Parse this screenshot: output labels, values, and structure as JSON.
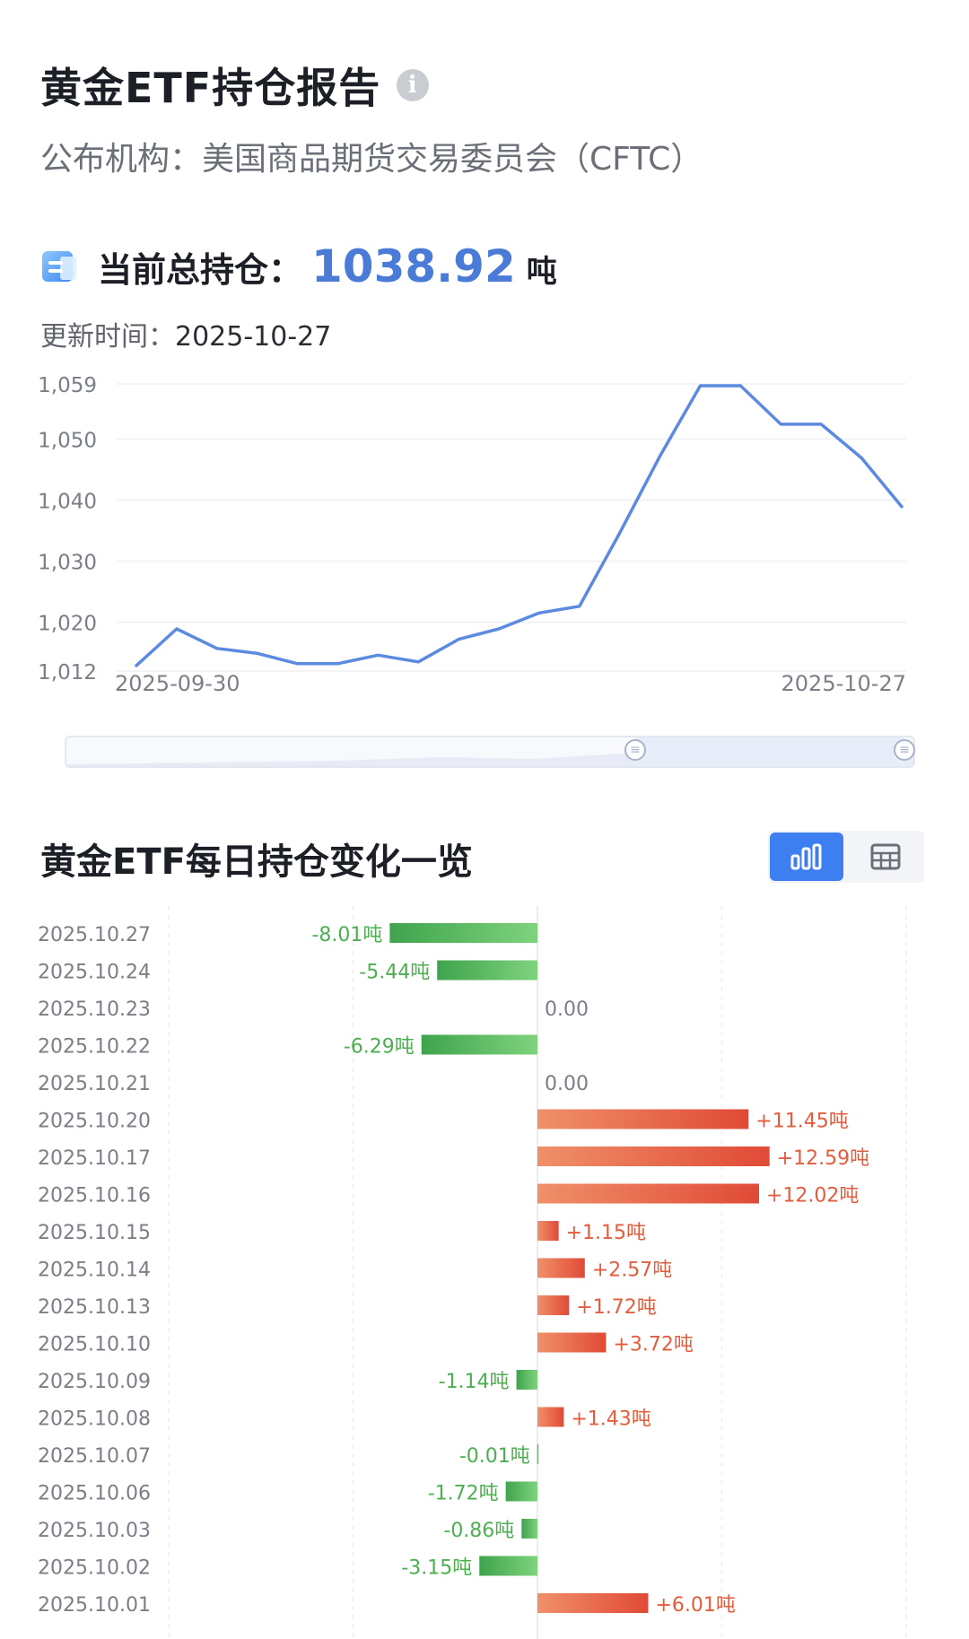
{
  "header": {
    "title": "黄金ETF持仓报告",
    "info_icon": "info-icon",
    "publisher": "公布机构：美国商品期货交易委员会（CFTC）"
  },
  "holdings": {
    "icon": "ledger-icon",
    "label": "当前总持仓：",
    "value": "1038.92",
    "unit": "吨",
    "update_label": "更新时间：",
    "update_date": "2025-10-27"
  },
  "colors": {
    "line": "#5b8ae0",
    "accent": "#4a7bd6",
    "positive": "#e35d3c",
    "negative": "#4caf50",
    "toggle_active": "#3d7ef0"
  },
  "chart_data": [
    {
      "type": "line",
      "x": [
        "2025-09-30",
        "2025-10-01",
        "2025-10-02",
        "2025-10-03",
        "2025-10-06",
        "2025-10-07",
        "2025-10-08",
        "2025-10-09",
        "2025-10-10",
        "2025-10-13",
        "2025-10-14",
        "2025-10-15",
        "2025-10-16",
        "2025-10-17",
        "2025-10-20",
        "2025-10-21",
        "2025-10-22",
        "2025-10-23",
        "2025-10-24",
        "2025-10-27"
      ],
      "values": [
        1012.9,
        1018.9,
        1015.7,
        1014.9,
        1013.2,
        1013.2,
        1014.6,
        1013.5,
        1017.2,
        1018.9,
        1021.5,
        1022.6,
        1034.6,
        1047.2,
        1058.7,
        1058.7,
        1052.4,
        1052.4,
        1046.9,
        1038.92
      ],
      "yticks": [
        1012,
        1020,
        1030,
        1040,
        1050,
        1059
      ],
      "ytick_labels": [
        "1,012",
        "1,020",
        "1,030",
        "1,040",
        "1,050",
        "1,059"
      ],
      "ylim": [
        1012,
        1059
      ],
      "xtick_labels": [
        "2025-09-30",
        "2025-10-27"
      ],
      "grid": true
    },
    {
      "type": "bar",
      "title": "黄金ETF每日持仓变化一览",
      "orientation": "horizontal",
      "categories": [
        "2025.10.27",
        "2025.10.24",
        "2025.10.23",
        "2025.10.22",
        "2025.10.21",
        "2025.10.20",
        "2025.10.17",
        "2025.10.16",
        "2025.10.15",
        "2025.10.14",
        "2025.10.13",
        "2025.10.10",
        "2025.10.09",
        "2025.10.08",
        "2025.10.07",
        "2025.10.06",
        "2025.10.03",
        "2025.10.02",
        "2025.10.01"
      ],
      "values": [
        -8.01,
        -5.44,
        0.0,
        -6.29,
        0.0,
        11.45,
        12.59,
        12.02,
        1.15,
        2.57,
        1.72,
        3.72,
        -1.14,
        1.43,
        -0.01,
        -1.72,
        -0.86,
        -3.15,
        6.01
      ],
      "labels": [
        "-8.01吨",
        "-5.44吨",
        "0.00",
        "-6.29吨",
        "0.00",
        "+11.45吨",
        "+12.59吨",
        "+12.02吨",
        "+1.15吨",
        "+2.57吨",
        "+1.72吨",
        "+3.72吨",
        "-1.14吨",
        "+1.43吨",
        "-0.01吨",
        "-1.72吨",
        "-0.86吨",
        "-3.15吨",
        "+6.01吨"
      ],
      "xlim": [
        -20,
        20
      ],
      "grid": true
    }
  ],
  "toggle": {
    "options": [
      {
        "icon": "bar-chart-icon",
        "active": true
      },
      {
        "icon": "table-icon",
        "active": false
      }
    ]
  }
}
